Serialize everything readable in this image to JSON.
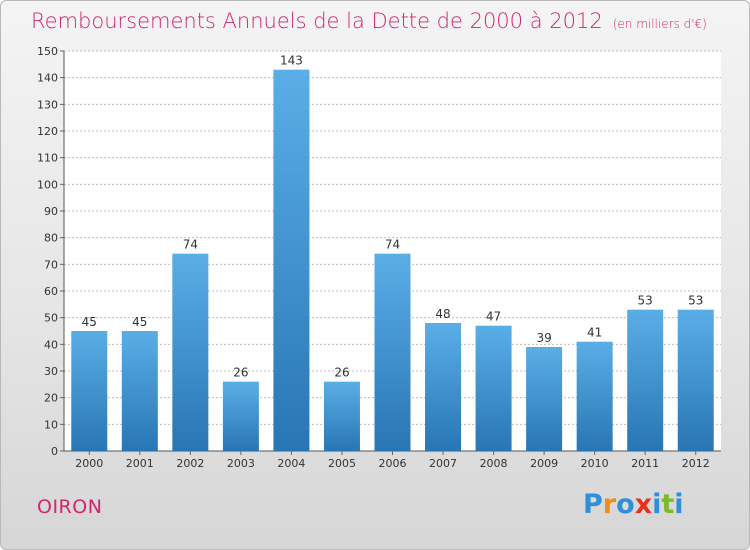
{
  "title": "Remboursements Annuels de la Dette de 2000 à 2012",
  "unit": "(en milliers d'€)",
  "commune": "OIRON",
  "logo": {
    "letters": [
      "P",
      "r",
      "o",
      "x",
      "i",
      "t",
      "i"
    ],
    "colors": [
      "#2f8fd8",
      "#f08c1a",
      "#2f8fd8",
      "#e8301c",
      "#2f8fd8",
      "#7cb92c",
      "#2f8fd8"
    ]
  },
  "colors": {
    "bar_top": "#5aaee6",
    "bar_bottom": "#2876b4",
    "title": "#d0266e",
    "grid": "#bdbdbd"
  },
  "chart_data": {
    "type": "bar",
    "title": "Remboursements Annuels de la Dette de 2000 à 2012",
    "categories": [
      "2000",
      "2001",
      "2002",
      "2003",
      "2004",
      "2005",
      "2006",
      "2007",
      "2008",
      "2009",
      "2010",
      "2011",
      "2012"
    ],
    "values": [
      45,
      45,
      74,
      26,
      143,
      26,
      74,
      48,
      47,
      39,
      41,
      53,
      53
    ],
    "ylim": [
      0,
      150
    ],
    "yticks": [
      0,
      10,
      20,
      30,
      40,
      50,
      60,
      70,
      80,
      90,
      100,
      110,
      120,
      130,
      140,
      150
    ],
    "grid": true,
    "xlabel": "",
    "ylabel": ""
  }
}
